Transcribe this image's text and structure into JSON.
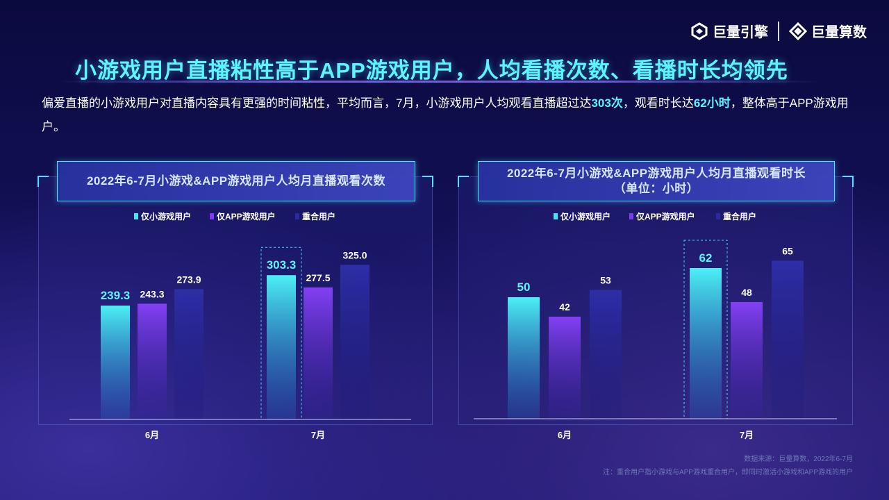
{
  "brand": {
    "logo1": "巨量引擎",
    "logo2": "巨量算数"
  },
  "title": "小游戏用户直播粘性高于APP游戏用户，人均看播次数、看播时长均领先",
  "description": {
    "part1": "偏爱直播的小游戏用户对直播内容具有更强的时间粘性，平均而言，7月，小游戏用户人均观看直播超过达",
    "hl1": "303次",
    "part2": "，观看时长达",
    "hl2": "62小时",
    "part3": "，整体高于APP游戏用户。"
  },
  "colors": {
    "mini": "#46e6f0",
    "app": "#7a3cf0",
    "overlap": "#2a2a9c",
    "highlight": "#5ff2ff"
  },
  "chart_data": [
    {
      "type": "bar",
      "title": "2022年6-7月小游戏&APP游戏用户人均月直播观看次数",
      "categories": [
        "6月",
        "7月"
      ],
      "series": [
        {
          "name": "仅小游戏用户",
          "values": [
            239.3,
            303.3
          ],
          "labels": [
            "239.3",
            "303.3"
          ]
        },
        {
          "name": "仅APP游戏用户",
          "values": [
            243.3,
            277.5
          ],
          "labels": [
            "243.3",
            "277.5"
          ]
        },
        {
          "name": "重合用户",
          "values": [
            273.9,
            325.0
          ],
          "labels": [
            "273.9",
            "325.0"
          ]
        }
      ],
      "ylim": [
        0,
        400
      ],
      "legend": "top",
      "grid": false,
      "highlight": {
        "series": 0,
        "category": 1
      }
    },
    {
      "type": "bar",
      "title": "2022年6-7月小游戏&APP游戏用户人均月直播观看时长",
      "subtitle": "（单位：小时）",
      "categories": [
        "6月",
        "7月"
      ],
      "series": [
        {
          "name": "仅小游戏用户",
          "values": [
            50,
            62
          ],
          "labels": [
            "50",
            "62"
          ]
        },
        {
          "name": "仅APP游戏用户",
          "values": [
            42,
            48
          ],
          "labels": [
            "42",
            "48"
          ]
        },
        {
          "name": "重合用户",
          "values": [
            53,
            65
          ],
          "labels": [
            "53",
            "65"
          ]
        }
      ],
      "ylim": [
        0,
        78
      ],
      "legend": "top",
      "grid": false,
      "highlight": {
        "series": 0,
        "category": 1
      }
    }
  ],
  "source": {
    "line1": "数据来源：巨量算数，2022年6-7月",
    "line2": "注：重合用户指小游戏与APP游戏重合用户，即同时激活小游戏和APP游戏的用户"
  }
}
